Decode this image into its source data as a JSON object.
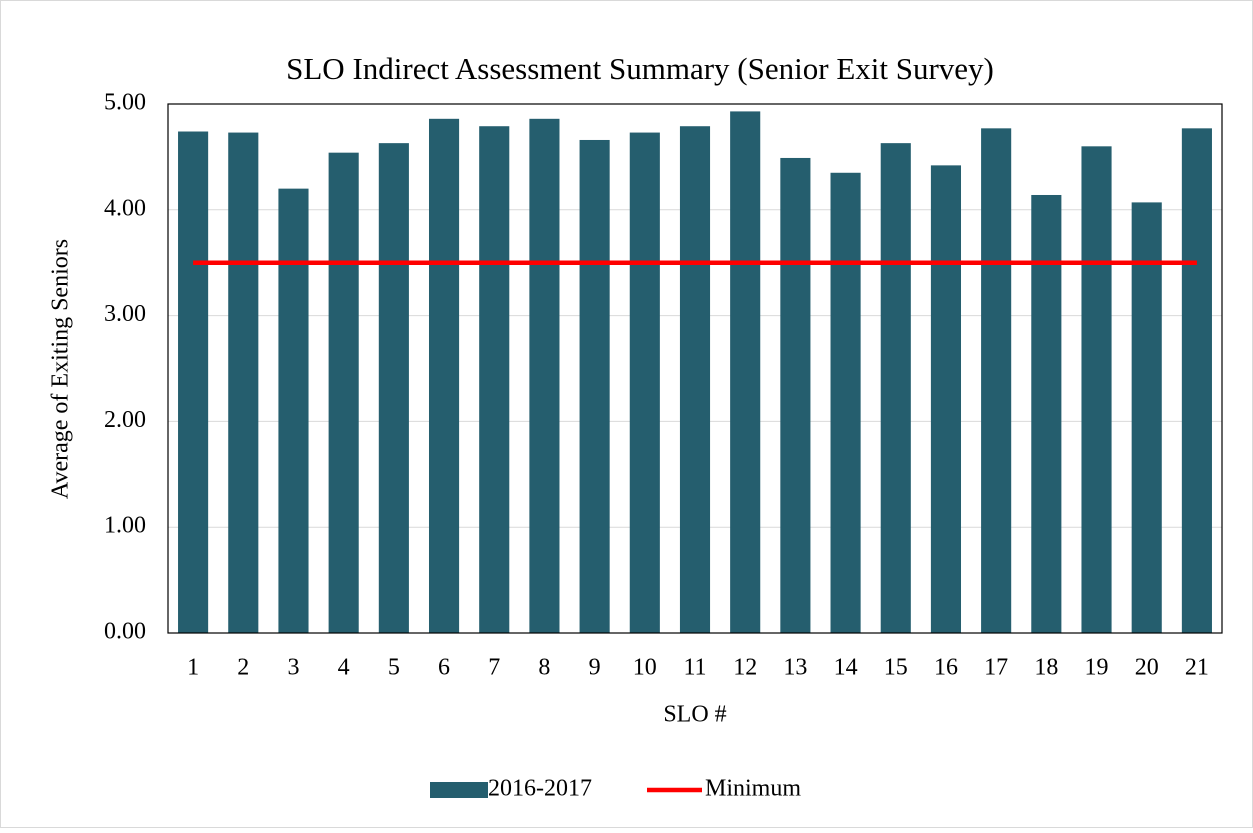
{
  "chart_data": {
    "type": "bar",
    "title": "SLO Indirect Assessment Summary (Senior Exit Survey)",
    "x_label": "SLO #",
    "y_label": "Average of Exiting Seniors",
    "categories": [
      "1",
      "2",
      "3",
      "4",
      "5",
      "6",
      "7",
      "8",
      "9",
      "10",
      "11",
      "12",
      "13",
      "14",
      "15",
      "16",
      "17",
      "18",
      "19",
      "20",
      "21"
    ],
    "series": [
      {
        "name": "2016-2017",
        "type": "bar",
        "color": "#255e6e",
        "values": [
          4.74,
          4.73,
          4.2,
          4.54,
          4.63,
          4.86,
          4.79,
          4.86,
          4.66,
          4.73,
          4.79,
          4.93,
          4.49,
          4.35,
          4.63,
          4.42,
          4.77,
          4.14,
          4.6,
          4.07,
          4.77
        ]
      },
      {
        "name": "Minimum",
        "type": "line",
        "color": "#ff0000",
        "values": [
          3.5,
          3.5,
          3.5,
          3.5,
          3.5,
          3.5,
          3.5,
          3.5,
          3.5,
          3.5,
          3.5,
          3.5,
          3.5,
          3.5,
          3.5,
          3.5,
          3.5,
          3.5,
          3.5,
          3.5,
          3.5
        ]
      }
    ],
    "ylim": [
      0,
      5
    ],
    "yticks": [
      {
        "value": 0,
        "label": "0.00"
      },
      {
        "value": 1,
        "label": "1.00"
      },
      {
        "value": 2,
        "label": "2.00"
      },
      {
        "value": 3,
        "label": "3.00"
      },
      {
        "value": 4,
        "label": "4.00"
      },
      {
        "value": 5,
        "label": "5.00"
      }
    ],
    "grid": true,
    "legend": "bottom"
  }
}
